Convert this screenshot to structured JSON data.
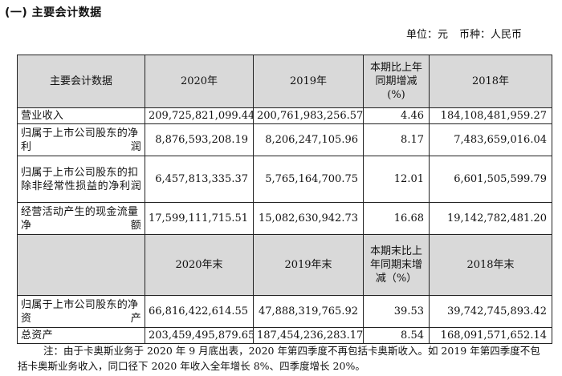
{
  "section_title": "(一) 主要会计数据",
  "unit": {
    "unit_label": "单位：元",
    "currency_label": "币种：人民币"
  },
  "table1": {
    "headers": [
      "主要会计数据",
      "2020年",
      "2019年",
      "本期比上年同期增减(%)",
      "2018年"
    ],
    "rows": [
      {
        "label": "营业收入",
        "y2020": "209,725,821,099.44",
        "y2019": "200,761,983,256.57",
        "change": "4.46",
        "y2018": "184,108,481,959.27"
      },
      {
        "label": "归属于上市公司股东的净利润",
        "y2020": "8,876,593,208.19",
        "y2019": "8,206,247,105.96",
        "change": "8.17",
        "y2018": "7,483,659,016.04"
      },
      {
        "label": "归属于上市公司股东的扣除非经常性损益的净利润",
        "y2020": "6,457,813,335.37",
        "y2019": "5,765,164,700.75",
        "change": "12.01",
        "y2018": "6,601,505,599.79"
      },
      {
        "label": "经营活动产生的现金流量净额",
        "y2020": "17,599,111,715.51",
        "y2019": "15,082,630,942.73",
        "change": "16.68",
        "y2018": "19,142,782,481.20"
      }
    ]
  },
  "table2": {
    "headers": [
      "",
      "2020年末",
      "2019年末",
      "本期末比上年同期末增减（%）",
      "2018年末"
    ],
    "rows": [
      {
        "label": "归属于上市公司股东的净资产",
        "y2020": "66,816,422,614.55",
        "y2019": "47,888,319,765.92",
        "change": "39.53",
        "y2018": "39,742,745,893.42"
      },
      {
        "label": "总资产",
        "y2020": "203,459,495,879.65",
        "y2019": "187,454,236,283.17",
        "change": "8.54",
        "y2018": "168,091,571,652.14"
      }
    ]
  },
  "note": "注：由于卡奥斯业务于 2020 年 9 月底出表，2020 年第四季度不再包括卡奥斯收入。如 2019 年第四季度不包括卡奥斯业务收入，同口径下 2020 年收入全年增长 8%、四季度增长 20%。"
}
